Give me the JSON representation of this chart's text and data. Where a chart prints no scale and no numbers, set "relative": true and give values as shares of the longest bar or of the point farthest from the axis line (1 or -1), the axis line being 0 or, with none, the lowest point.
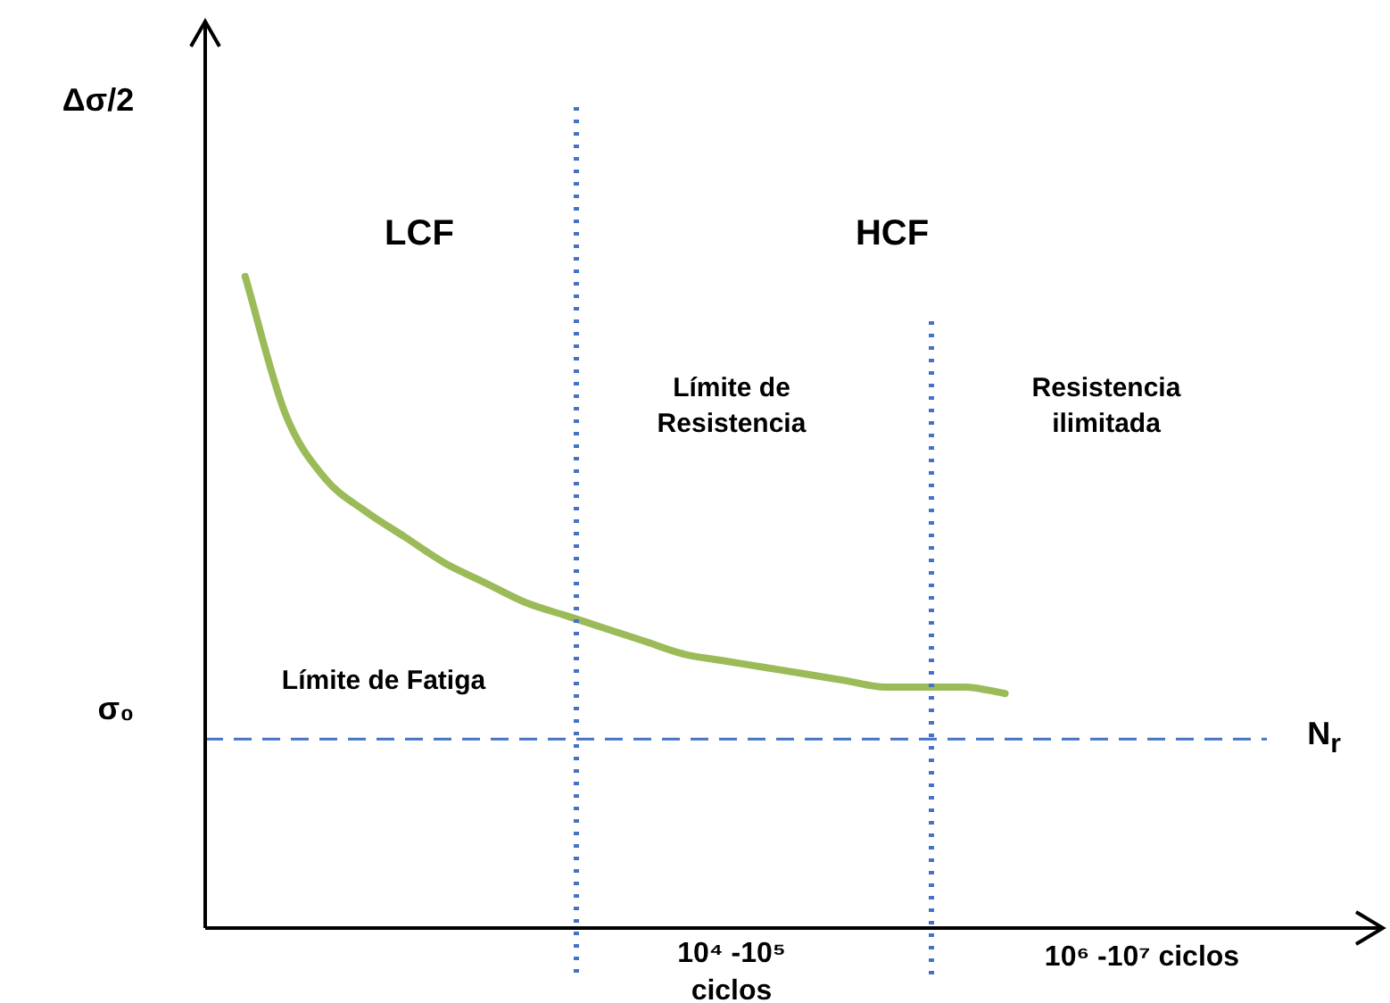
{
  "chart_data": {
    "type": "line",
    "relative": true,
    "xlabel": "N$_{r}$",
    "categories": [
      null,
      null,
      null,
      null,
      null,
      null,
      null,
      null,
      null,
      null,
      null,
      null,
      null,
      null,
      null,
      null,
      null,
      null,
      null,
      null,
      null,
      null,
      null,
      null,
      null,
      null,
      null,
      null,
      null,
      null
    ],
    "series": [
      {
        "color": "#9bbb59",
        "values": [
          null,
          1.0,
          0.79,
          0.69,
          0.64,
          0.6,
          0.56,
          0.53,
          0.5,
          0.48,
          0.46,
          0.44,
          0.42,
          0.41,
          0.4,
          0.39,
          0.38,
          0.37,
          0.37,
          0.37,
          0.36,
          null,
          null,
          null,
          null,
          null,
          null,
          null,
          null,
          null
        ]
      }
    ],
    "ref_lines": [
      {
        "axis": "y",
        "value": 0.29,
        "label": "σ₀",
        "color": "#4472c4",
        "line_style": "dashed"
      }
    ],
    "annotations": [
      "Δσ/2",
      "LCF",
      "HCF",
      "Límite de Resistencia",
      "Resistencia ilimitada",
      "Límite de Fatiga",
      "10⁴ -10⁵ ciclos",
      "10⁶ -10⁷ ciclos"
    ],
    "legend": false,
    "marker": "none",
    "line_style": "solid"
  }
}
